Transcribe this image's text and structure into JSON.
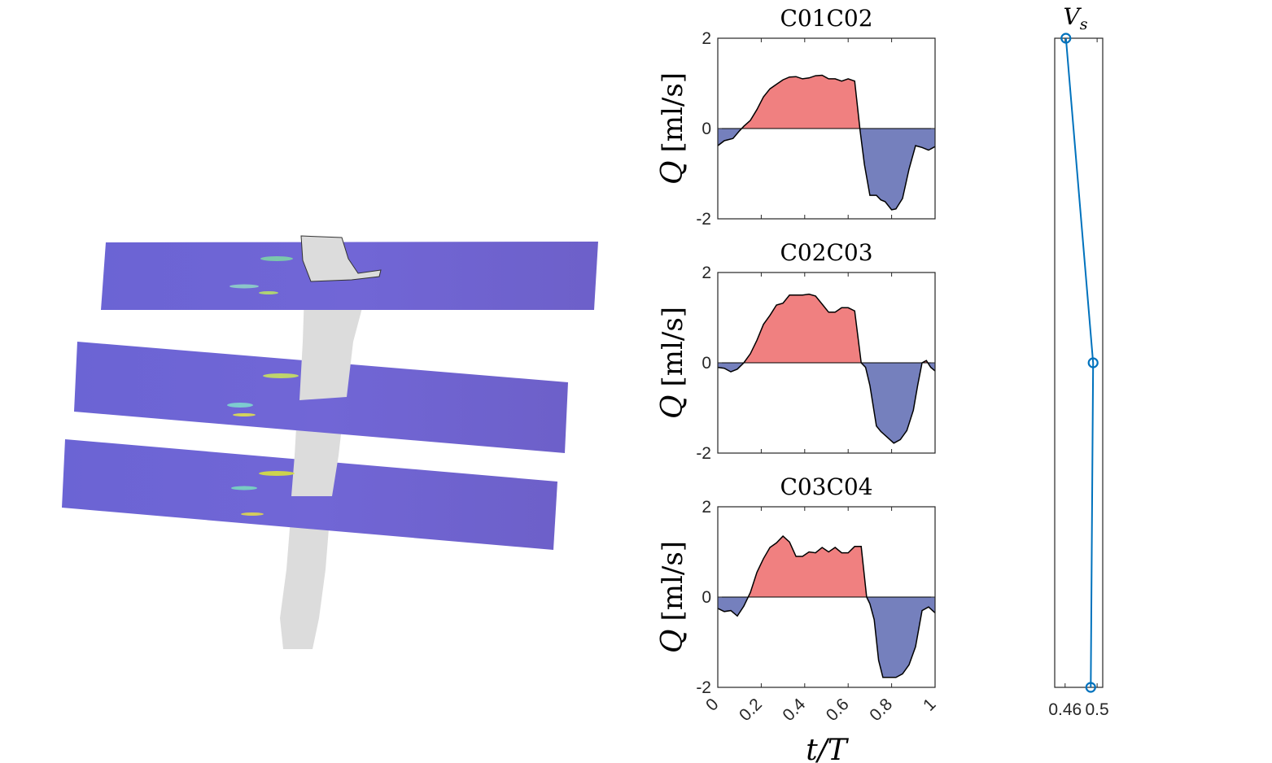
{
  "colors": {
    "positive_fill": "#f08080",
    "negative_fill": "#7580bd",
    "outline": "#000000",
    "vs_line": "#0072bd",
    "plane": "#6e63cf",
    "vessel": "#dcdcdc"
  },
  "chart_data": [
    {
      "type": "area",
      "title": "C01C02",
      "ylabel_symbol": "Q",
      "ylabel_unit": "[ml/s]",
      "xlabel": "t/T",
      "ylim": [
        -2,
        2
      ],
      "xlim": [
        0,
        1
      ],
      "yticks": [
        "2",
        "0",
        "-2"
      ],
      "xticks": [
        "0",
        "0.2",
        "0.4",
        "0.6",
        "0.8",
        "1"
      ],
      "fill_positive": "red",
      "fill_negative": "blue",
      "x": [
        0,
        0.03,
        0.07,
        0.1,
        0.12,
        0.15,
        0.18,
        0.21,
        0.24,
        0.27,
        0.3,
        0.33,
        0.36,
        0.39,
        0.42,
        0.45,
        0.48,
        0.51,
        0.54,
        0.57,
        0.6,
        0.63,
        0.655,
        0.675,
        0.7,
        0.73,
        0.75,
        0.77,
        0.8,
        0.82,
        0.85,
        0.88,
        0.91,
        0.94,
        0.97,
        1.0
      ],
      "y": [
        -0.38,
        -0.27,
        -0.22,
        -0.05,
        0.05,
        0.18,
        0.42,
        0.7,
        0.88,
        0.98,
        1.08,
        1.14,
        1.15,
        1.1,
        1.12,
        1.17,
        1.18,
        1.1,
        1.1,
        1.05,
        1.1,
        1.05,
        -0.05,
        -0.8,
        -1.48,
        -1.48,
        -1.58,
        -1.62,
        -1.8,
        -1.78,
        -1.55,
        -0.9,
        -0.38,
        -0.42,
        -0.48,
        -0.4
      ]
    },
    {
      "type": "area",
      "title": "C02C03",
      "ylabel_symbol": "Q",
      "ylabel_unit": "[ml/s]",
      "xlabel": "t/T",
      "ylim": [
        -2,
        2
      ],
      "xlim": [
        0,
        1
      ],
      "yticks": [
        "2",
        "0",
        "-2"
      ],
      "xticks": [
        "0",
        "0.2",
        "0.4",
        "0.6",
        "0.8",
        "1"
      ],
      "fill_positive": "red",
      "fill_negative": "blue",
      "x": [
        0,
        0.03,
        0.06,
        0.09,
        0.12,
        0.15,
        0.18,
        0.21,
        0.24,
        0.27,
        0.3,
        0.33,
        0.36,
        0.39,
        0.42,
        0.45,
        0.48,
        0.51,
        0.54,
        0.57,
        0.6,
        0.63,
        0.66,
        0.68,
        0.7,
        0.73,
        0.75,
        0.78,
        0.81,
        0.84,
        0.87,
        0.9,
        0.92,
        0.94,
        0.96,
        0.98,
        1.0
      ],
      "y": [
        -0.1,
        -0.12,
        -0.2,
        -0.14,
        0.0,
        0.2,
        0.5,
        0.85,
        1.05,
        1.28,
        1.32,
        1.5,
        1.5,
        1.5,
        1.52,
        1.48,
        1.3,
        1.12,
        1.12,
        1.22,
        1.22,
        1.15,
        0.0,
        -0.1,
        -0.5,
        -1.4,
        -1.52,
        -1.65,
        -1.78,
        -1.7,
        -1.5,
        -1.05,
        -0.5,
        0.0,
        0.05,
        -0.1,
        -0.18
      ]
    },
    {
      "type": "area",
      "title": "C03C04",
      "ylabel_symbol": "Q",
      "ylabel_unit": "[ml/s]",
      "xlabel": "t/T",
      "ylim": [
        -2,
        2
      ],
      "xlim": [
        0,
        1
      ],
      "yticks": [
        "2",
        "0",
        "-2"
      ],
      "xticks": [
        "0",
        "0.2",
        "0.4",
        "0.6",
        "0.8",
        "1"
      ],
      "fill_positive": "red",
      "fill_negative": "blue",
      "x": [
        0,
        0.03,
        0.06,
        0.09,
        0.12,
        0.15,
        0.18,
        0.21,
        0.24,
        0.27,
        0.3,
        0.33,
        0.36,
        0.39,
        0.42,
        0.45,
        0.48,
        0.51,
        0.54,
        0.57,
        0.6,
        0.63,
        0.66,
        0.685,
        0.7,
        0.72,
        0.74,
        0.76,
        0.79,
        0.82,
        0.85,
        0.88,
        0.91,
        0.94,
        0.97,
        1.0
      ],
      "y": [
        -0.25,
        -0.32,
        -0.3,
        -0.42,
        -0.2,
        0.1,
        0.55,
        0.85,
        1.1,
        1.2,
        1.35,
        1.22,
        0.9,
        0.9,
        1.0,
        0.98,
        1.1,
        1.0,
        1.1,
        0.98,
        0.98,
        1.12,
        1.12,
        0.0,
        -0.15,
        -0.5,
        -1.4,
        -1.78,
        -1.78,
        -1.78,
        -1.7,
        -1.5,
        -1.1,
        -0.3,
        -0.22,
        -0.35
      ]
    },
    {
      "type": "line",
      "title_symbol": "V",
      "title_subscript": "s",
      "xlim": [
        0.447,
        0.507
      ],
      "ylim": [
        -2,
        2
      ],
      "xticks": [
        0.46,
        0.5
      ],
      "xtick_labels": [
        "0.46",
        "0.5"
      ],
      "marker": "circle",
      "x": [
        0.461,
        0.495,
        0.492
      ],
      "y": [
        2,
        0,
        -2
      ]
    }
  ]
}
